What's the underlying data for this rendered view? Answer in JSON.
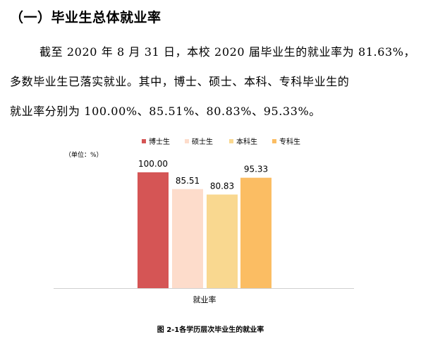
{
  "section": {
    "heading": "（一）毕业生总体就业率",
    "paragraph_lines": [
      "截至 2020 年 8 月 31 日，本校 2020 届毕业生的就业率为 81.63%，",
      "多数毕业生已落实就业。其中，博士、硕士、本科、专科毕业生的",
      "就业率分别为 100.00%、85.51%、80.83%、95.33%。"
    ]
  },
  "chart_data": {
    "type": "bar",
    "unit_label": "（单位：%）",
    "categories": [
      "就业率"
    ],
    "series": [
      {
        "name": "博士生",
        "values": [
          100.0
        ],
        "label": "100.00",
        "color": "#d55555"
      },
      {
        "name": "硕士生",
        "values": [
          85.51
        ],
        "label": "85.51",
        "color": "#fddccb"
      },
      {
        "name": "本科生",
        "values": [
          80.83
        ],
        "label": "80.83",
        "color": "#f9d890"
      },
      {
        "name": "专科生",
        "values": [
          95.33
        ],
        "label": "95.33",
        "color": "#fbbd63"
      }
    ],
    "ylim": [
      0,
      100
    ],
    "grid": false,
    "legend_position": "top",
    "caption": "图 2-1各学历层次毕业生的就业率"
  }
}
